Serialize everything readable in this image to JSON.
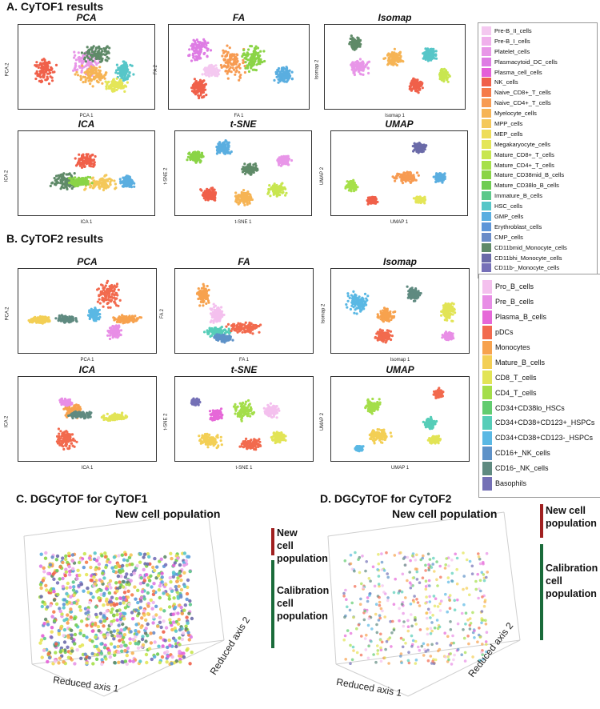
{
  "sections": {
    "a": "A. CyTOF1 results",
    "b": "B. CyTOF2 results",
    "c": "C. DGCyTOF for CyTOF1",
    "d": "D. DGCyTOF for CyTOF2"
  },
  "cytof1": {
    "panels": [
      {
        "title": "PCA",
        "xlabel": "PCA 1",
        "ylabel": "PCA 2"
      },
      {
        "title": "FA",
        "xlabel": "FA 1",
        "ylabel": "FA 2"
      },
      {
        "title": "Isomap",
        "xlabel": "Isomap 1",
        "ylabel": "Isomap 2"
      },
      {
        "title": "ICA",
        "xlabel": "ICA 1",
        "ylabel": "ICA 2"
      },
      {
        "title": "t-SNE",
        "xlabel": "t-SNE 1",
        "ylabel": "t-SNE 2"
      },
      {
        "title": "UMAP",
        "xlabel": "UMAP 1",
        "ylabel": "UMAP 2"
      }
    ],
    "legend": [
      {
        "label": "Pre-B_II_cells",
        "color": "#f4c8f0"
      },
      {
        "label": "Pre-B_I_cells",
        "color": "#f0b0ec"
      },
      {
        "label": "Platelet_cells",
        "color": "#e896e8"
      },
      {
        "label": "Plasmacytoid_DC_cells",
        "color": "#de7ce4"
      },
      {
        "label": "Plasma_cell_cells",
        "color": "#e45fd8"
      },
      {
        "label": "NK_cells",
        "color": "#f0604a"
      },
      {
        "label": "Naive_CD8+_T_cells",
        "color": "#f57b4a"
      },
      {
        "label": "Naive_CD4+_T_cells",
        "color": "#f79b52"
      },
      {
        "label": "Myelocyte_cells",
        "color": "#f6b455"
      },
      {
        "label": "MPP_cells",
        "color": "#f4c85a"
      },
      {
        "label": "MEP_cells",
        "color": "#eedd5a"
      },
      {
        "label": "Megakaryocyte_cells",
        "color": "#e4e658"
      },
      {
        "label": "Mature_CD8+_T_cells",
        "color": "#c8e650"
      },
      {
        "label": "Mature_CD4+_T_cells",
        "color": "#a6e04a"
      },
      {
        "label": "Mature_CD38mid_B_cells",
        "color": "#8ad446"
      },
      {
        "label": "Mature_CD38lo_B_cells",
        "color": "#6fcc52"
      },
      {
        "label": "Immature_B_cells",
        "color": "#5cc88a"
      },
      {
        "label": "HSC_cells",
        "color": "#56c6c8"
      },
      {
        "label": "GMP_cells",
        "color": "#5aaee0"
      },
      {
        "label": "Erythroblast_cells",
        "color": "#5e96d8"
      },
      {
        "label": "CMP_cells",
        "color": "#6a8cc8"
      },
      {
        "label": "CD11bmid_Monocyte_cells",
        "color": "#5f8a68"
      },
      {
        "label": "CD11bhi_Monocyte_cells",
        "color": "#6a6aa8"
      },
      {
        "label": "CD11b-_Monocyte_cells",
        "color": "#7670b8"
      }
    ]
  },
  "cytof2": {
    "panels": [
      {
        "title": "PCA",
        "xlabel": "PCA 1",
        "ylabel": "PCA 2"
      },
      {
        "title": "FA",
        "xlabel": "FA 1",
        "ylabel": "FA 2"
      },
      {
        "title": "Isomap",
        "xlabel": "Isomap 1",
        "ylabel": "Isomap 2"
      },
      {
        "title": "ICA",
        "xlabel": "ICA 1",
        "ylabel": "ICA 2"
      },
      {
        "title": "t-SNE",
        "xlabel": "t-SNE 1",
        "ylabel": "t-SNE 2"
      },
      {
        "title": "UMAP",
        "xlabel": "UMAP 1",
        "ylabel": "UMAP 2"
      }
    ],
    "legend": [
      {
        "label": "Pro_B_cells",
        "color": "#f4c0ee"
      },
      {
        "label": "Pre_B_cells",
        "color": "#e88ee6"
      },
      {
        "label": "Plasma_B_cells",
        "color": "#e668d8"
      },
      {
        "label": "pDCs",
        "color": "#f26a4e"
      },
      {
        "label": "Monocytes",
        "color": "#f7a24e"
      },
      {
        "label": "Mature_B_cells",
        "color": "#f3cf55"
      },
      {
        "label": "CD8_T_cells",
        "color": "#e2e456"
      },
      {
        "label": "CD4_T_cells",
        "color": "#a4de4a"
      },
      {
        "label": "CD34+CD38lo_HSCs",
        "color": "#62cc70"
      },
      {
        "label": "CD34+CD38+CD123+_HSPCs",
        "color": "#56cdb8"
      },
      {
        "label": "CD34+CD38+CD123-_HSPCs",
        "color": "#5ab8e4"
      },
      {
        "label": "CD16+_NK_cells",
        "color": "#5e92c8"
      },
      {
        "label": "CD16-_NK_cells",
        "color": "#5f8a80"
      },
      {
        "label": "Basophils",
        "color": "#7470b6"
      }
    ]
  },
  "dg1": {
    "new_label": "New cell population",
    "side_new": "New cell population",
    "side_cal": "Calibration cell population",
    "axis1": "Reduced axis 1",
    "axis2": "Reduced axis 2"
  },
  "dg2": {
    "new_label": "New cell population",
    "side_new": "New cell population",
    "side_cal": "Calibration cell population",
    "axis1": "Reduced axis 1",
    "axis2": "Reduced axis 2"
  }
}
